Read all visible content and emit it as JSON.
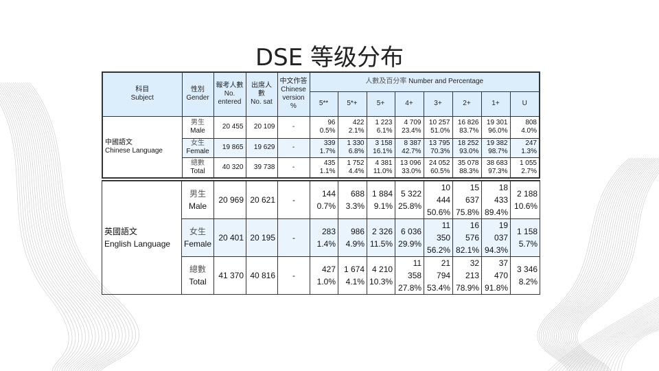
{
  "title": "DSE 等级分布",
  "header": {
    "subject": {
      "zh": "科目",
      "en": "Subject"
    },
    "gender": {
      "zh": "性別",
      "en": "Gender"
    },
    "entered": {
      "zh": "報考人數",
      "en": "No. entered"
    },
    "sat": {
      "zh": "出席人數",
      "en": "No. sat"
    },
    "chinese_version": {
      "zh": "中文作答",
      "en": "Chinese version %"
    },
    "grades_group": {
      "zh": "人數及百分率",
      "en": "Number and Percentage"
    },
    "grades": [
      "5**",
      "5*+",
      "5+",
      "4+",
      "3+",
      "2+",
      "1+",
      "U"
    ]
  },
  "subjects": [
    {
      "zh": "中國語文",
      "en": "Chinese Language",
      "rows": [
        {
          "gender_zh": "男生",
          "gender_en": "Male",
          "entered": "20 455",
          "sat": "20 109",
          "cv": "-",
          "counts": [
            "96",
            "422",
            "1 223",
            "4 709",
            "10 257",
            "16 826",
            "19 301",
            "808"
          ],
          "pcts": [
            "0.5%",
            "2.1%",
            "6.1%",
            "23.4%",
            "51.0%",
            "83.7%",
            "96.0%",
            "4.0%"
          ]
        },
        {
          "gender_zh": "女生",
          "gender_en": "Female",
          "entered": "19 865",
          "sat": "19 629",
          "cv": "-",
          "counts": [
            "339",
            "1 330",
            "3 158",
            "8 387",
            "13 795",
            "18 252",
            "19 382",
            "247"
          ],
          "pcts": [
            "1.7%",
            "6.8%",
            "16.1%",
            "42.7%",
            "70.3%",
            "93.0%",
            "98.7%",
            "1.3%"
          ]
        },
        {
          "gender_zh": "總數",
          "gender_en": "Total",
          "entered": "40 320",
          "sat": "39 738",
          "cv": "-",
          "counts": [
            "435",
            "1 752",
            "4 381",
            "13 096",
            "24 052",
            "35 078",
            "38 683",
            "1 055"
          ],
          "pcts": [
            "1.1%",
            "4.4%",
            "11.0%",
            "33.0%",
            "60.5%",
            "88.3%",
            "97.3%",
            "2.7%"
          ]
        }
      ]
    },
    {
      "zh": "英國語文",
      "en": "English Language",
      "rows": [
        {
          "gender_zh": "男生",
          "gender_en": "Male",
          "entered": "20 969",
          "sat": "20 621",
          "cv": "-",
          "counts": [
            "144",
            "688",
            "1 884",
            "5 322",
            "10 444",
            "15 637",
            "18 433",
            "2 188"
          ],
          "pcts": [
            "0.7%",
            "3.3%",
            "9.1%",
            "25.8%",
            "50.6%",
            "75.8%",
            "89.4%",
            "10.6%"
          ]
        },
        {
          "gender_zh": "女生",
          "gender_en": "Female",
          "entered": "20 401",
          "sat": "20 195",
          "cv": "-",
          "counts": [
            "283",
            "986",
            "2 326",
            "6 036",
            "11 350",
            "16 576",
            "19 037",
            "1 158"
          ],
          "pcts": [
            "1.4%",
            "4.9%",
            "11.5%",
            "29.9%",
            "56.2%",
            "82.1%",
            "94.3%",
            "5.7%"
          ]
        },
        {
          "gender_zh": "總數",
          "gender_en": "Total",
          "entered": "41 370",
          "sat": "40 816",
          "cv": "-",
          "counts": [
            "427",
            "1 674",
            "4 210",
            "11 358",
            "21 794",
            "32 213",
            "37 470",
            "3 346"
          ],
          "pcts": [
            "1.0%",
            "4.1%",
            "10.3%",
            "27.8%",
            "53.4%",
            "78.9%",
            "91.8%",
            "8.2%"
          ]
        }
      ]
    }
  ]
}
